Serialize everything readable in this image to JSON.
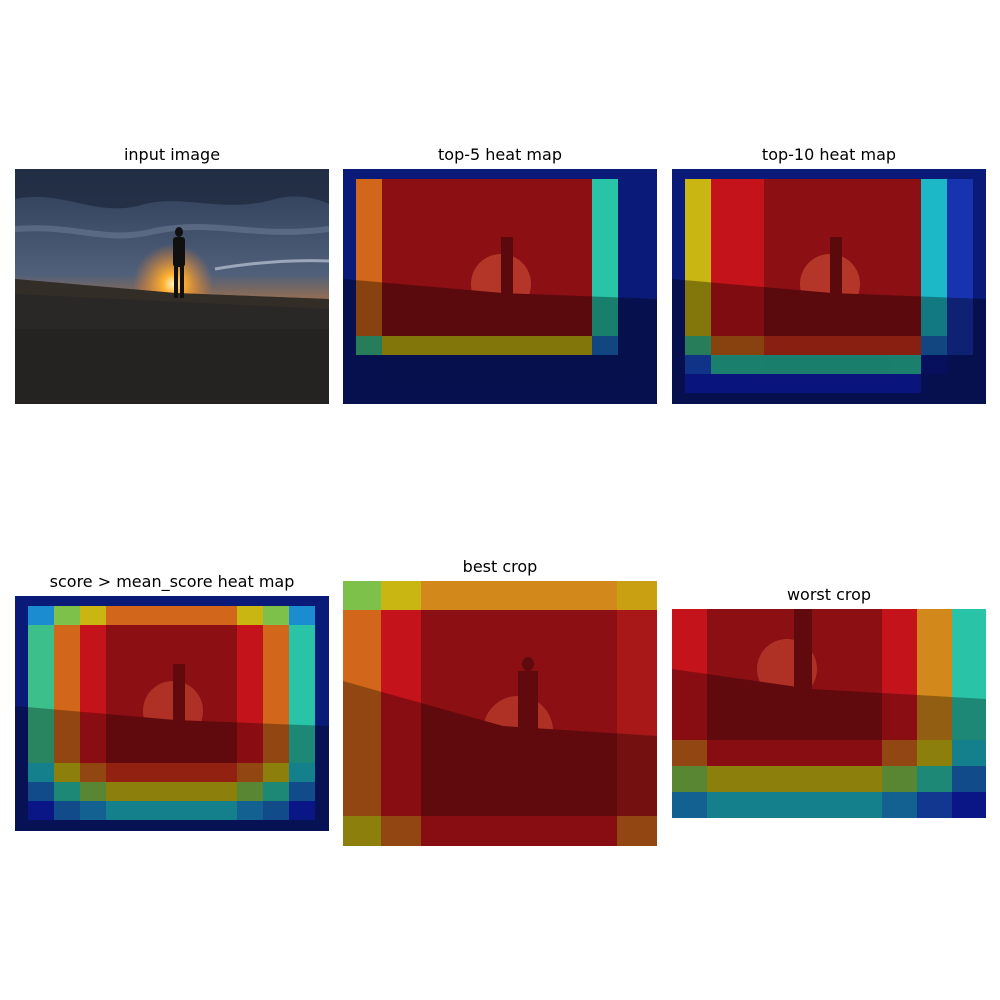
{
  "figure": {
    "panels": [
      {
        "id": "input",
        "title": "input image"
      },
      {
        "id": "top5",
        "title": "top-5 heat map"
      },
      {
        "id": "top10",
        "title": "top-10 heat map"
      },
      {
        "id": "mean",
        "title": "score > mean_score heat map"
      },
      {
        "id": "best",
        "title": "best crop"
      },
      {
        "id": "worst",
        "title": "worst crop"
      }
    ]
  },
  "colormap": {
    "darkblue": "#0a1a78",
    "blue": "#1d3fc8",
    "midblue": "#1b6cc6",
    "cyan": "#1cb8c8",
    "teal": "#29c3a8",
    "green": "#7ec14a",
    "yellow": "#c9b612",
    "orange": "#d2661a",
    "red": "#c4131a",
    "darkred": "#8c0f14"
  }
}
